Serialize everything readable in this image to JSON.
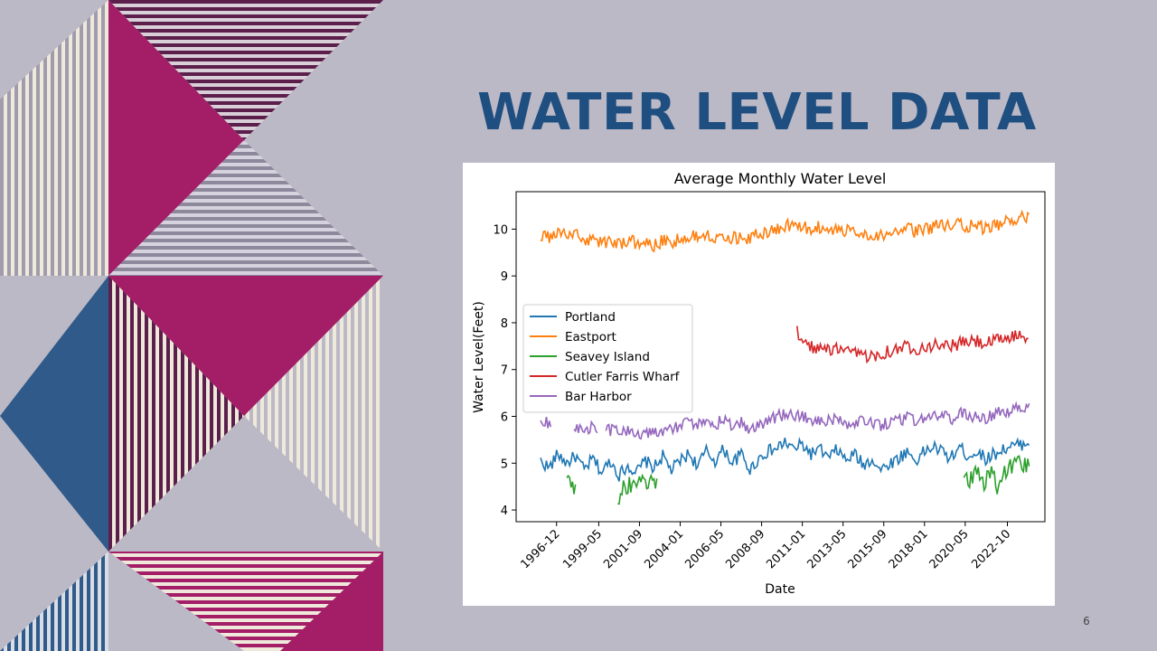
{
  "slide": {
    "title": "WATER LEVEL DATA",
    "page_number": "6"
  },
  "colors": {
    "background": "#bcb9c6",
    "title": "#1f4e80",
    "magenta": "#a41e67",
    "plum": "#5c1f4c",
    "navy": "#2f5a89",
    "cream": "#efe9dc",
    "gray_stripe": "#a09cad"
  },
  "chart_data": {
    "type": "line",
    "title": "Average Monthly Water Level",
    "xlabel": "Date",
    "ylabel": "Water Level(Feet)",
    "ylim": [
      3.75,
      10.8
    ],
    "yticks": [
      "4",
      "5",
      "6",
      "7",
      "8",
      "9",
      "10"
    ],
    "xlim_year": [
      1994.6,
      2024.9
    ],
    "xticks": [
      "1996-12",
      "1999-05",
      "2001-09",
      "2004-01",
      "2006-05",
      "2008-09",
      "2011-01",
      "2013-05",
      "2015-09",
      "2018-01",
      "2020-05",
      "2022-10"
    ],
    "legend_position": "center-left",
    "series": [
      {
        "name": "Portland",
        "color": "#1f77b4",
        "start": 1996.0,
        "end": 2024.0,
        "points": [
          [
            1996.0,
            5.05
          ],
          [
            1996.5,
            4.9
          ],
          [
            1997.0,
            5.2
          ],
          [
            1997.5,
            5.0
          ],
          [
            1998.0,
            5.15
          ],
          [
            1998.5,
            4.85
          ],
          [
            1999.0,
            5.1
          ],
          [
            1999.5,
            4.8
          ],
          [
            2000.0,
            5.05
          ],
          [
            2000.5,
            4.75
          ],
          [
            2001.0,
            4.95
          ],
          [
            2001.5,
            4.8
          ],
          [
            2002.0,
            5.05
          ],
          [
            2002.5,
            4.9
          ],
          [
            2003.0,
            5.15
          ],
          [
            2003.5,
            4.85
          ],
          [
            2004.0,
            5.05
          ],
          [
            2004.5,
            5.2
          ],
          [
            2005.0,
            4.95
          ],
          [
            2005.5,
            5.25
          ],
          [
            2006.0,
            5.05
          ],
          [
            2006.5,
            5.3
          ],
          [
            2007.0,
            5.0
          ],
          [
            2007.5,
            5.2
          ],
          [
            2008.0,
            4.85
          ],
          [
            2008.5,
            5.1
          ],
          [
            2009.0,
            5.25
          ],
          [
            2009.5,
            5.3
          ],
          [
            2010.0,
            5.45
          ],
          [
            2010.5,
            5.3
          ],
          [
            2011.0,
            5.4
          ],
          [
            2011.5,
            5.2
          ],
          [
            2012.0,
            5.3
          ],
          [
            2012.5,
            5.1
          ],
          [
            2013.0,
            5.3
          ],
          [
            2013.5,
            5.05
          ],
          [
            2014.0,
            5.2
          ],
          [
            2014.5,
            4.95
          ],
          [
            2015.0,
            5.1
          ],
          [
            2015.5,
            4.85
          ],
          [
            2016.0,
            5.0
          ],
          [
            2016.5,
            5.1
          ],
          [
            2017.0,
            5.25
          ],
          [
            2017.5,
            5.05
          ],
          [
            2018.0,
            5.25
          ],
          [
            2018.5,
            5.35
          ],
          [
            2019.0,
            5.25
          ],
          [
            2019.5,
            5.1
          ],
          [
            2020.0,
            5.35
          ],
          [
            2020.5,
            5.15
          ],
          [
            2021.0,
            5.25
          ],
          [
            2021.5,
            5.1
          ],
          [
            2022.0,
            5.2
          ],
          [
            2022.5,
            5.3
          ],
          [
            2023.0,
            5.35
          ],
          [
            2023.5,
            5.4
          ],
          [
            2024.0,
            5.45
          ]
        ]
      },
      {
        "name": "Eastport",
        "color": "#ff7f0e",
        "start": 1996.0,
        "end": 2024.0,
        "points": [
          [
            1996.0,
            9.9
          ],
          [
            1996.5,
            9.8
          ],
          [
            1997.0,
            9.95
          ],
          [
            1997.5,
            9.85
          ],
          [
            1998.0,
            9.9
          ],
          [
            1998.5,
            9.75
          ],
          [
            1999.0,
            9.8
          ],
          [
            1999.5,
            9.7
          ],
          [
            2000.0,
            9.75
          ],
          [
            2000.5,
            9.7
          ],
          [
            2001.0,
            9.75
          ],
          [
            2001.5,
            9.7
          ],
          [
            2002.0,
            9.75
          ],
          [
            2002.5,
            9.65
          ],
          [
            2003.0,
            9.75
          ],
          [
            2003.5,
            9.7
          ],
          [
            2004.0,
            9.8
          ],
          [
            2004.5,
            9.85
          ],
          [
            2005.0,
            9.85
          ],
          [
            2005.5,
            9.9
          ],
          [
            2006.0,
            9.85
          ],
          [
            2006.5,
            9.9
          ],
          [
            2007.0,
            9.8
          ],
          [
            2007.5,
            9.85
          ],
          [
            2008.0,
            9.8
          ],
          [
            2008.5,
            9.9
          ],
          [
            2009.0,
            9.95
          ],
          [
            2009.5,
            10.0
          ],
          [
            2010.0,
            10.05
          ],
          [
            2010.5,
            10.1
          ],
          [
            2011.0,
            10.05
          ],
          [
            2011.5,
            10.0
          ],
          [
            2012.0,
            10.05
          ],
          [
            2012.5,
            9.95
          ],
          [
            2013.0,
            10.0
          ],
          [
            2013.5,
            9.95
          ],
          [
            2014.0,
            10.0
          ],
          [
            2014.5,
            9.9
          ],
          [
            2015.0,
            9.9
          ],
          [
            2015.5,
            9.85
          ],
          [
            2016.0,
            9.95
          ],
          [
            2016.5,
            9.9
          ],
          [
            2017.0,
            10.0
          ],
          [
            2017.5,
            9.95
          ],
          [
            2018.0,
            10.0
          ],
          [
            2018.5,
            10.05
          ],
          [
            2019.0,
            10.1
          ],
          [
            2019.5,
            10.05
          ],
          [
            2020.0,
            10.1
          ],
          [
            2020.5,
            10.05
          ],
          [
            2021.0,
            10.1
          ],
          [
            2021.5,
            10.0
          ],
          [
            2022.0,
            10.05
          ],
          [
            2022.5,
            10.15
          ],
          [
            2023.0,
            10.2
          ],
          [
            2023.5,
            10.25
          ],
          [
            2024.0,
            10.2
          ]
        ]
      },
      {
        "name": "Seavey Island",
        "color": "#2ca02c",
        "start": 1997.5,
        "end": 2024.0,
        "points": [
          [
            1997.5,
            4.75
          ],
          [
            1997.8,
            4.6
          ],
          [
            1998.0,
            4.45
          ],
          [
            2000.4,
            4.15
          ],
          [
            2000.8,
            4.5
          ],
          [
            2001.2,
            4.55
          ],
          [
            2001.7,
            4.55
          ],
          [
            2002.3,
            4.6
          ],
          [
            2002.7,
            4.55
          ],
          [
            2020.2,
            4.85
          ],
          [
            2020.6,
            4.6
          ],
          [
            2021.0,
            4.9
          ],
          [
            2021.4,
            4.55
          ],
          [
            2021.8,
            4.85
          ],
          [
            2022.2,
            4.45
          ],
          [
            2022.6,
            4.8
          ],
          [
            2023.0,
            4.95
          ],
          [
            2023.5,
            5.0
          ],
          [
            2024.0,
            4.95
          ]
        ]
      },
      {
        "name": "Cutler Farris Wharf",
        "color": "#d62728",
        "start": 2010.7,
        "end": 2024.0,
        "points": [
          [
            2010.7,
            7.9
          ],
          [
            2010.9,
            7.55
          ],
          [
            2011.5,
            7.5
          ],
          [
            2012.0,
            7.45
          ],
          [
            2012.5,
            7.4
          ],
          [
            2013.0,
            7.45
          ],
          [
            2013.5,
            7.35
          ],
          [
            2014.0,
            7.35
          ],
          [
            2014.5,
            7.3
          ],
          [
            2015.0,
            7.3
          ],
          [
            2015.5,
            7.35
          ],
          [
            2016.0,
            7.4
          ],
          [
            2016.5,
            7.45
          ],
          [
            2017.0,
            7.5
          ],
          [
            2017.5,
            7.45
          ],
          [
            2018.0,
            7.5
          ],
          [
            2018.5,
            7.5
          ],
          [
            2019.0,
            7.55
          ],
          [
            2019.5,
            7.5
          ],
          [
            2020.0,
            7.55
          ],
          [
            2020.5,
            7.6
          ],
          [
            2021.0,
            7.6
          ],
          [
            2021.5,
            7.55
          ],
          [
            2022.0,
            7.6
          ],
          [
            2022.5,
            7.65
          ],
          [
            2023.0,
            7.7
          ],
          [
            2023.5,
            7.75
          ],
          [
            2024.0,
            7.7
          ]
        ]
      },
      {
        "name": "Bar Harbor",
        "color": "#9467bd",
        "start": 1996.0,
        "end": 2024.0,
        "points": [
          [
            1996.0,
            5.8
          ],
          [
            1996.5,
            5.9
          ],
          [
            1997.0,
            5.85
          ],
          [
            1997.5,
            5.75
          ],
          [
            1998.0,
            5.8
          ],
          [
            1998.5,
            5.7
          ],
          [
            1999.0,
            5.75
          ],
          [
            1999.5,
            5.65
          ],
          [
            2000.0,
            5.7
          ],
          [
            2000.5,
            5.65
          ],
          [
            2001.0,
            5.7
          ],
          [
            2001.5,
            5.6
          ],
          [
            2002.0,
            5.7
          ],
          [
            2002.5,
            5.65
          ],
          [
            2003.0,
            5.7
          ],
          [
            2003.5,
            5.75
          ],
          [
            2004.0,
            5.8
          ],
          [
            2004.5,
            5.85
          ],
          [
            2005.0,
            5.8
          ],
          [
            2005.5,
            5.9
          ],
          [
            2006.0,
            5.85
          ],
          [
            2006.5,
            5.9
          ],
          [
            2007.0,
            5.8
          ],
          [
            2007.5,
            5.85
          ],
          [
            2008.0,
            5.75
          ],
          [
            2008.5,
            5.85
          ],
          [
            2009.0,
            5.9
          ],
          [
            2009.5,
            6.0
          ],
          [
            2010.0,
            6.05
          ],
          [
            2010.5,
            6.0
          ],
          [
            2011.0,
            6.0
          ],
          [
            2011.5,
            5.95
          ],
          [
            2012.0,
            5.95
          ],
          [
            2012.5,
            5.9
          ],
          [
            2013.0,
            5.95
          ],
          [
            2013.5,
            5.85
          ],
          [
            2014.0,
            5.9
          ],
          [
            2014.5,
            5.85
          ],
          [
            2015.0,
            5.85
          ],
          [
            2015.5,
            5.8
          ],
          [
            2016.0,
            5.85
          ],
          [
            2016.5,
            5.9
          ],
          [
            2017.0,
            5.95
          ],
          [
            2017.5,
            5.9
          ],
          [
            2018.0,
            5.95
          ],
          [
            2018.5,
            6.0
          ],
          [
            2019.0,
            6.05
          ],
          [
            2019.5,
            5.95
          ],
          [
            2020.0,
            6.05
          ],
          [
            2020.5,
            6.0
          ],
          [
            2021.0,
            6.05
          ],
          [
            2021.5,
            5.95
          ],
          [
            2022.0,
            6.05
          ],
          [
            2022.5,
            6.1
          ],
          [
            2023.0,
            6.15
          ],
          [
            2023.5,
            6.2
          ],
          [
            2024.0,
            6.15
          ]
        ]
      }
    ]
  }
}
